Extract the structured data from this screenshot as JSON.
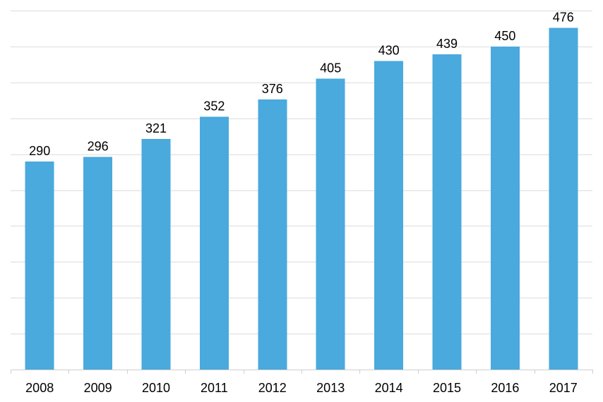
{
  "chart_data": {
    "type": "bar",
    "title": "",
    "xlabel": "",
    "ylabel": "",
    "categories": [
      "2008",
      "2009",
      "2010",
      "2011",
      "2012",
      "2013",
      "2014",
      "2015",
      "2016",
      "2017"
    ],
    "values": [
      290,
      296,
      321,
      352,
      376,
      405,
      430,
      439,
      450,
      476
    ],
    "ylim": [
      0,
      500
    ],
    "y_gridlines_step": 50,
    "grid": true,
    "legend": "none",
    "data_labels": true,
    "colors": {
      "bar": "#4aa9dd"
    }
  }
}
